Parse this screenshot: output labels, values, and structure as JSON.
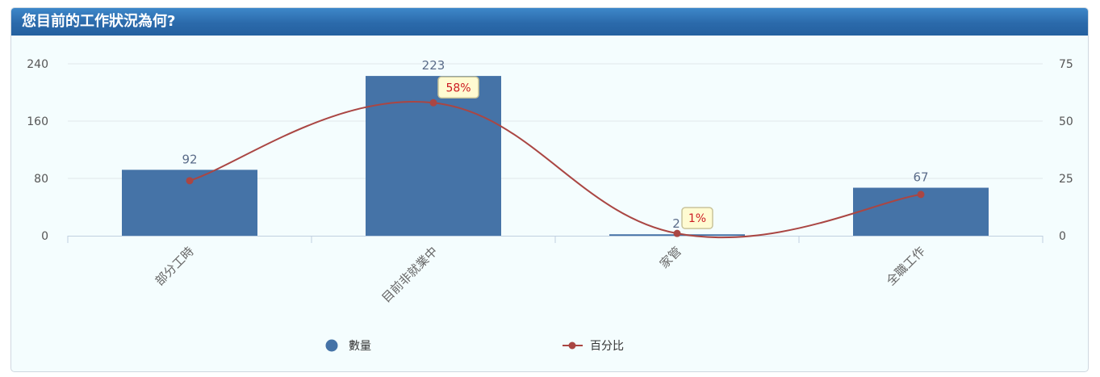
{
  "panel": {
    "title": "您目前的工作狀況為何?"
  },
  "chart_data": {
    "type": "bar",
    "categories": [
      "部分工時",
      "目前非就業中",
      "家管",
      "全職工作"
    ],
    "series": [
      {
        "name": "數量",
        "type": "bar",
        "axis": "left",
        "values": [
          92,
          223,
          2,
          67
        ],
        "color": "#4573a7"
      },
      {
        "name": "百分比",
        "type": "line",
        "axis": "right",
        "values": [
          24,
          58,
          1,
          18
        ],
        "color": "#aa4643"
      }
    ],
    "data_labels": {
      "bars": [
        "92",
        "223",
        "2",
        "67"
      ],
      "line": [
        "",
        "58%",
        "1%",
        ""
      ]
    },
    "y_left": {
      "ticks": [
        0,
        80,
        160,
        240
      ],
      "range": [
        0,
        240
      ]
    },
    "y_right": {
      "ticks": [
        0,
        25,
        50,
        75
      ],
      "range": [
        0,
        75
      ]
    },
    "grid": true,
    "legend_position": "bottom"
  }
}
